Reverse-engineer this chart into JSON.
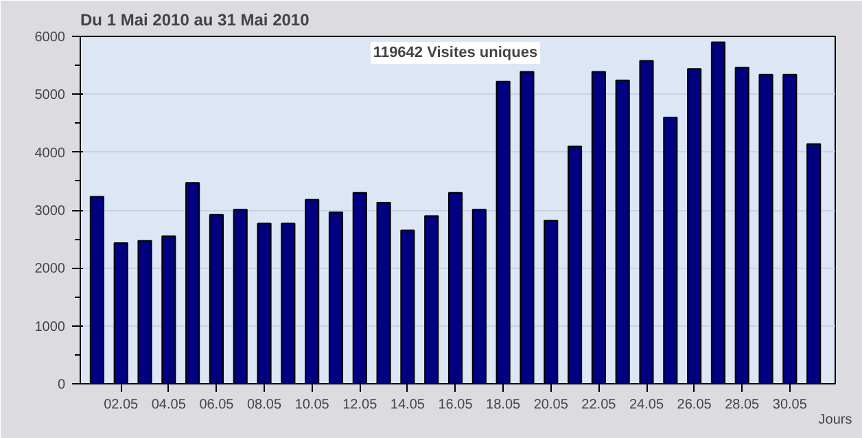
{
  "chart_data": {
    "type": "bar",
    "title": "Du 1 Mai 2010 au  31 Mai 2010",
    "subtitle": "119642 Visites uniques",
    "xlabel": "Jours",
    "categories": [
      null,
      "02.05",
      null,
      "04.05",
      null,
      "06.05",
      null,
      "08.05",
      null,
      "10.05",
      null,
      "12.05",
      null,
      "14.05",
      null,
      "16.05",
      null,
      "18.05",
      null,
      "20.05",
      null,
      "22.05",
      null,
      "24.05",
      null,
      "26.05",
      null,
      "28.05",
      null,
      "30.05",
      null
    ],
    "values": [
      3230,
      2430,
      2470,
      2550,
      3470,
      2920,
      3010,
      2770,
      2770,
      3180,
      2960,
      3300,
      3130,
      2650,
      2900,
      3300,
      3010,
      5220,
      5390,
      2820,
      4100,
      5390,
      5240,
      5580,
      4600,
      5440,
      5900,
      5460,
      5340,
      5340,
      4140
    ],
    "color": "#000080",
    "ylim": [
      0,
      6000
    ],
    "yticks": [
      0,
      1000,
      2000,
      3000,
      4000,
      5000,
      6000
    ],
    "grid": "y"
  }
}
